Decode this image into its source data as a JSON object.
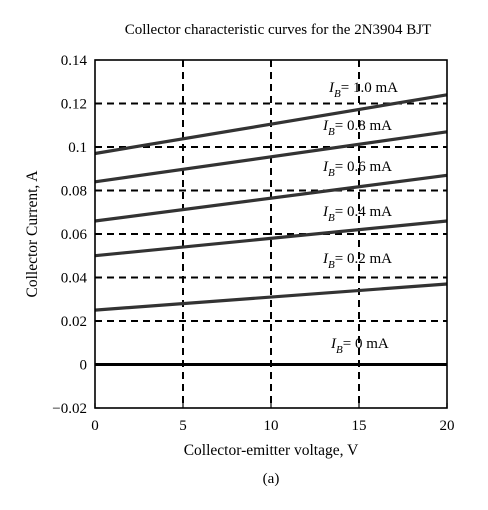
{
  "chart_data": {
    "type": "line",
    "title": "Collector characteristic curves for the 2N3904 BJT",
    "xlabel": "Collector-emitter voltage, V",
    "ylabel": "Collector Current, A",
    "caption": "(a)",
    "xlim": [
      0,
      20
    ],
    "ylim": [
      -0.02,
      0.14
    ],
    "xticks": [
      0,
      5,
      10,
      15,
      20
    ],
    "xtick_labels": [
      "0",
      "5",
      "10",
      "15",
      "20"
    ],
    "yticks": [
      -0.02,
      0,
      0.02,
      0.04,
      0.06,
      0.08,
      0.1,
      0.12,
      0.14
    ],
    "ytick_labels": [
      "−0.02",
      "0",
      "0.02",
      "0.04",
      "0.06",
      "0.08",
      "0.1",
      "0.12",
      "0.14"
    ],
    "grid": true,
    "grid_style": "dashed",
    "series": [
      {
        "name": "I_B = 0 mA",
        "label_var": "I",
        "label_sub": "B",
        "label_text": "= 0  mA",
        "x": [
          0,
          20
        ],
        "y": [
          0.0,
          0.0
        ]
      },
      {
        "name": "I_B = 0.2 mA",
        "label_var": "I",
        "label_sub": "B",
        "label_text": "= 0.2 mA",
        "x": [
          0,
          20
        ],
        "y": [
          0.025,
          0.037
        ]
      },
      {
        "name": "I_B = 0.4 mA",
        "label_var": "I",
        "label_sub": "B",
        "label_text": "= 0.4 mA",
        "x": [
          0,
          20
        ],
        "y": [
          0.05,
          0.066
        ]
      },
      {
        "name": "I_B = 0.6 mA",
        "label_var": "I",
        "label_sub": "B",
        "label_text": "= 0.6 mA",
        "x": [
          0,
          20
        ],
        "y": [
          0.066,
          0.087
        ]
      },
      {
        "name": "I_B = 0.8 mA",
        "label_var": "I",
        "label_sub": "B",
        "label_text": "= 0.8 mA",
        "x": [
          0,
          20
        ],
        "y": [
          0.084,
          0.107
        ]
      },
      {
        "name": "I_B = 1.0 mA",
        "label_var": "I",
        "label_sub": "B",
        "label_text": "= 1.0 mA",
        "x": [
          0,
          20
        ],
        "y": [
          0.097,
          0.124
        ]
      }
    ],
    "colors": {
      "curve": "#333333",
      "grid": "#000000",
      "axes": "#000000"
    }
  }
}
